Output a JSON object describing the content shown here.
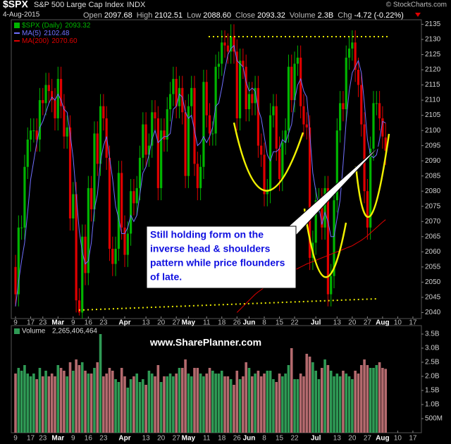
{
  "header": {
    "symbol": "$SPX",
    "name": "S&P 500 Large Cap Index",
    "exchange": "INDX",
    "copyright": "© StockCharts.com",
    "date": "4-Aug-2015",
    "quote": [
      {
        "label": "Open",
        "value": "2097.68"
      },
      {
        "label": "High",
        "value": "2102.51"
      },
      {
        "label": "Low",
        "value": "2088.60"
      },
      {
        "label": "Close",
        "value": "2093.32"
      },
      {
        "label": "Volume",
        "value": "2.3B"
      },
      {
        "label": "Chg",
        "value": "-4.72 (-0.22%)"
      }
    ]
  },
  "chart_data": [
    {
      "type": "candlestick",
      "xlim": [
        -1.4,
        133.8
      ],
      "xticks": [
        {
          "value": 0,
          "label": "9"
        },
        {
          "value": 5,
          "label": "17"
        },
        {
          "value": 9,
          "label": "23"
        },
        {
          "value": 14,
          "label": "Mar"
        },
        {
          "value": 19,
          "label": "9"
        },
        {
          "value": 24,
          "label": "16"
        },
        {
          "value": 29,
          "label": "23"
        },
        {
          "value": 36,
          "label": "Apr"
        },
        {
          "value": 43,
          "label": "13"
        },
        {
          "value": 48,
          "label": "20"
        },
        {
          "value": 53,
          "label": "27"
        },
        {
          "value": 57,
          "label": "May"
        },
        {
          "value": 63,
          "label": "11"
        },
        {
          "value": 68,
          "label": "18"
        },
        {
          "value": 73,
          "label": "26"
        },
        {
          "value": 77,
          "label": "Jun"
        },
        {
          "value": 82,
          "label": "8"
        },
        {
          "value": 87,
          "label": "15"
        },
        {
          "value": 92,
          "label": "22"
        },
        {
          "value": 99,
          "label": "Jul"
        },
        {
          "value": 106,
          "label": "13"
        },
        {
          "value": 111,
          "label": "20"
        },
        {
          "value": 116,
          "label": "27"
        },
        {
          "value": 121,
          "label": "Aug"
        },
        {
          "value": 126,
          "label": "10"
        },
        {
          "value": 131,
          "label": "17"
        }
      ],
      "ylim": [
        2038,
        2136.5
      ],
      "yticks": [
        2040,
        2045,
        2050,
        2055,
        2060,
        2065,
        2070,
        2075,
        2080,
        2085,
        2090,
        2095,
        2100,
        2105,
        2110,
        2115,
        2120,
        2125,
        2130,
        2135
      ],
      "up_color": "#00b400",
      "down_color": "#e00000",
      "open": [
        2055,
        2046,
        2068,
        2068,
        2088,
        2097,
        2100,
        2100,
        2097,
        2110,
        2109,
        2115,
        2113,
        2110,
        2104,
        2117,
        2108,
        2098,
        2101,
        2071,
        2079,
        2044,
        2040,
        2065,
        2053,
        2081,
        2074,
        2099,
        2089,
        2108,
        2104,
        2091,
        2061,
        2056,
        2061,
        2086,
        2068,
        2059,
        2066,
        2080,
        2076,
        2081,
        2091,
        2102,
        2092,
        2095,
        2106,
        2104,
        2081,
        2100,
        2097,
        2107,
        2112,
        2117,
        2108,
        2114,
        2106,
        2085,
        2108,
        2114,
        2089,
        2081,
        2088,
        2116,
        2105,
        2099,
        2099,
        2121,
        2122,
        2129,
        2128,
        2126,
        2131,
        2126,
        2104,
        2123,
        2121,
        2107,
        2112,
        2109,
        2114,
        2095,
        2092,
        2079,
        2080,
        2105,
        2108,
        2094,
        2084,
        2096,
        2100,
        2121,
        2110,
        2122,
        2124,
        2108,
        2102,
        2101,
        2058,
        2063,
        2077,
        2077,
        2068,
        2081,
        2046,
        2052,
        2077,
        2100,
        2109,
        2107,
        2124,
        2127,
        2129,
        2120,
        2115,
        2102,
        2080,
        2068,
        2094,
        2109,
        2109,
        2104,
        2097.68
      ],
      "high": [
        2059,
        2072,
        2072,
        2092,
        2101,
        2104,
        2104,
        2104,
        2114,
        2114,
        2119,
        2119,
        2117,
        2114,
        2121,
        2121,
        2112,
        2105,
        2105,
        2083,
        2083,
        2048,
        2069,
        2069,
        2085,
        2085,
        2103,
        2103,
        2112,
        2112,
        2108,
        2095,
        2065,
        2065,
        2090,
        2090,
        2072,
        2070,
        2084,
        2084,
        2085,
        2095,
        2106,
        2106,
        2099,
        2110,
        2110,
        2108,
        2104,
        2104,
        2111,
        2116,
        2121,
        2121,
        2118,
        2118,
        2110,
        2112,
        2118,
        2118,
        2093,
        2092,
        2120,
        2120,
        2109,
        2103,
        2125,
        2126,
        2133,
        2133,
        2132,
        2135,
        2135,
        2130,
        2127,
        2127,
        2125,
        2116,
        2116,
        2118,
        2118,
        2099,
        2096,
        2084,
        2109,
        2112,
        2112,
        2098,
        2100,
        2104,
        2125,
        2125,
        2126,
        2128,
        2128,
        2112,
        2106,
        2105,
        2067,
        2081,
        2081,
        2081,
        2085,
        2085,
        2056,
        2081,
        2104,
        2113,
        2113,
        2128,
        2131,
        2133,
        2133,
        2124,
        2119,
        2106,
        2084,
        2098,
        2113,
        2113,
        2113,
        2108,
        2102.51
      ],
      "low": [
        2042,
        2042,
        2064,
        2064,
        2084,
        2093,
        2096,
        2093,
        2093,
        2105,
        2105,
        2109,
        2106,
        2100,
        2100,
        2104,
        2094,
        2094,
        2067,
        2067,
        2040,
        2039,
        2038,
        2049,
        2049,
        2070,
        2070,
        2085,
        2085,
        2100,
        2087,
        2057,
        2052,
        2052,
        2057,
        2064,
        2055,
        2055,
        2062,
        2072,
        2072,
        2077,
        2087,
        2088,
        2088,
        2091,
        2100,
        2077,
        2077,
        2093,
        2093,
        2103,
        2108,
        2104,
        2104,
        2102,
        2081,
        2081,
        2104,
        2085,
        2077,
        2077,
        2084,
        2101,
        2095,
        2095,
        2095,
        2117,
        2118,
        2124,
        2122,
        2122,
        2122,
        2100,
        2100,
        2117,
        2103,
        2103,
        2105,
        2105,
        2091,
        2088,
        2075,
        2075,
        2076,
        2101,
        2090,
        2080,
        2080,
        2092,
        2096,
        2106,
        2106,
        2118,
        2104,
        2098,
        2097,
        2054,
        2054,
        2059,
        2073,
        2064,
        2064,
        2042,
        2042,
        2048,
        2073,
        2096,
        2103,
        2103,
        2120,
        2123,
        2116,
        2111,
        2098,
        2076,
        2064,
        2064,
        2090,
        2105,
        2100,
        2094,
        2088.6
      ],
      "close": [
        2046,
        2068,
        2068,
        2088,
        2097,
        2100,
        2100,
        2097,
        2110,
        2109,
        2115,
        2113,
        2110,
        2104,
        2117,
        2108,
        2098,
        2101,
        2071,
        2079,
        2044,
        2040,
        2065,
        2053,
        2081,
        2074,
        2099,
        2089,
        2108,
        2104,
        2091,
        2061,
        2056,
        2061,
        2086,
        2068,
        2059,
        2066,
        2080,
        2076,
        2081,
        2091,
        2102,
        2092,
        2095,
        2106,
        2104,
        2081,
        2100,
        2097,
        2107,
        2112,
        2117,
        2108,
        2114,
        2106,
        2085,
        2108,
        2114,
        2089,
        2081,
        2088,
        2116,
        2105,
        2099,
        2099,
        2121,
        2122,
        2129,
        2128,
        2126,
        2131,
        2126,
        2104,
        2123,
        2121,
        2107,
        2112,
        2109,
        2114,
        2095,
        2092,
        2079,
        2080,
        2105,
        2108,
        2094,
        2084,
        2096,
        2100,
        2121,
        2110,
        2122,
        2124,
        2108,
        2102,
        2101,
        2058,
        2063,
        2077,
        2077,
        2068,
        2081,
        2046,
        2052,
        2077,
        2100,
        2109,
        2107,
        2124,
        2127,
        2129,
        2120,
        2115,
        2102,
        2080,
        2068,
        2094,
        2109,
        2109,
        2104,
        2098,
        2093.32
      ],
      "series": [
        {
          "name": "$SPX (Daily)",
          "label": "2093.32",
          "color": "#00b400"
        },
        {
          "name": "MA(5)",
          "label": "2102.48",
          "color": "#7070ff",
          "values": [
            2042,
            2050,
            2057,
            2063,
            2073,
            2084,
            2090,
            2096,
            2101,
            2103,
            2106,
            2109,
            2111,
            2110,
            2112,
            2110,
            2107,
            2106,
            2099,
            2091,
            2079,
            2067,
            2060,
            2056,
            2057,
            2063,
            2074,
            2079,
            2090,
            2095,
            2098,
            2091,
            2084,
            2075,
            2071,
            2066,
            2066,
            2068,
            2072,
            2070,
            2072,
            2079,
            2086,
            2088,
            2092,
            2097,
            2100,
            2096,
            2097,
            2098,
            2098,
            2099,
            2107,
            2108,
            2112,
            2111,
            2106,
            2104,
            2105,
            2100,
            2095,
            2096,
            2098,
            2096,
            2098,
            2101,
            2108,
            2109,
            2114,
            2120,
            2125,
            2127,
            2128,
            2123,
            2122,
            2121,
            2116,
            2113,
            2114,
            2113,
            2107,
            2104,
            2098,
            2092,
            2090,
            2093,
            2093,
            2094,
            2097,
            2096,
            2099,
            2102,
            2110,
            2115,
            2117,
            2113,
            2111,
            2099,
            2086,
            2080,
            2075,
            2069,
            2073,
            2070,
            2065,
            2065,
            2071,
            2077,
            2089,
            2103,
            2113,
            2119,
            2121,
            2123,
            2119,
            2109,
            2097,
            2092,
            2091,
            2092,
            2097,
            2103,
            2102.48
          ]
        },
        {
          "name": "MA(200)",
          "label": "2070.60",
          "color": "#e00000",
          "values": [
            null,
            null,
            null,
            null,
            null,
            null,
            null,
            null,
            null,
            null,
            null,
            null,
            null,
            null,
            null,
            null,
            null,
            null,
            null,
            null,
            null,
            null,
            null,
            null,
            null,
            null,
            null,
            null,
            null,
            null,
            null,
            null,
            null,
            null,
            null,
            null,
            null,
            null,
            null,
            null,
            null,
            null,
            null,
            null,
            null,
            null,
            null,
            null,
            null,
            null,
            null,
            null,
            null,
            null,
            null,
            null,
            null,
            null,
            null,
            null,
            null,
            null,
            null,
            null,
            null,
            null,
            null,
            null,
            null,
            null,
            null,
            null,
            null,
            2040,
            2041,
            2042,
            2043,
            2044,
            2045,
            2046,
            2046.8,
            2047.5,
            2048.2,
            2049,
            2049.6,
            2050.2,
            2050.8,
            2051.4,
            2052,
            2052.5,
            2053,
            2053.5,
            2054,
            2054.5,
            2055,
            2055.5,
            2056,
            2056.4,
            2056.8,
            2057.2,
            2057.6,
            2058,
            2058.4,
            2058.8,
            2059.2,
            2059.6,
            2060,
            2060.4,
            2060.8,
            2061.2,
            2061.6,
            2062,
            2062.6,
            2063.2,
            2063.8,
            2064.5,
            2065.3,
            2066.2,
            2067.1,
            2068,
            2068.9,
            2069.8,
            2070.6
          ]
        }
      ],
      "annotation": [
        "Still holding form on the",
        "inverse head & shoulders",
        "pattern while price flounders",
        "of late."
      ]
    },
    {
      "type": "bar",
      "title": "Volume",
      "title_value": "2,265,406,464",
      "watermark": "www.SharePlanner.com",
      "xlim": [
        -1.4,
        133.8
      ],
      "xticks": [
        {
          "value": 0,
          "label": "9"
        },
        {
          "value": 5,
          "label": "17"
        },
        {
          "value": 9,
          "label": "23"
        },
        {
          "value": 14,
          "label": "Mar"
        },
        {
          "value": 19,
          "label": "9"
        },
        {
          "value": 24,
          "label": "16"
        },
        {
          "value": 29,
          "label": "23"
        },
        {
          "value": 36,
          "label": "Apr"
        },
        {
          "value": 43,
          "label": "13"
        },
        {
          "value": 48,
          "label": "20"
        },
        {
          "value": 53,
          "label": "27"
        },
        {
          "value": 57,
          "label": "May"
        },
        {
          "value": 63,
          "label": "11"
        },
        {
          "value": 68,
          "label": "18"
        },
        {
          "value": 73,
          "label": "26"
        },
        {
          "value": 77,
          "label": "Jun"
        },
        {
          "value": 82,
          "label": "8"
        },
        {
          "value": 87,
          "label": "15"
        },
        {
          "value": 92,
          "label": "22"
        },
        {
          "value": 99,
          "label": "Jul"
        },
        {
          "value": 106,
          "label": "13"
        },
        {
          "value": 111,
          "label": "20"
        },
        {
          "value": 116,
          "label": "27"
        },
        {
          "value": 121,
          "label": "Aug"
        },
        {
          "value": 126,
          "label": "10"
        },
        {
          "value": 131,
          "label": "17"
        }
      ],
      "ylim": [
        0,
        3.8
      ],
      "yticks": [
        {
          "value": 0.5,
          "label": "500M"
        },
        {
          "value": 1,
          "label": "1.0B"
        },
        {
          "value": 1.5,
          "label": "1.5B"
        },
        {
          "value": 2,
          "label": "2.0B"
        },
        {
          "value": 2.5,
          "label": "2.5B"
        },
        {
          "value": 3,
          "label": "3.0B"
        },
        {
          "value": 3.5,
          "label": "3.5B"
        }
      ],
      "up_color": "#2f9a55",
      "down_color": "#b46a6e",
      "values": [
        2.1,
        2.3,
        2.2,
        2.4,
        2.1,
        2.0,
        2.1,
        1.9,
        2.3,
        2.0,
        2.2,
        2.0,
        2.1,
        2.0,
        2.4,
        2.3,
        2.2,
        2.0,
        2.5,
        2.2,
        2.6,
        2.4,
        2.5,
        2.2,
        2.1,
        2.1,
        2.3,
        2.5,
        3.5,
        2.0,
        2.1,
        2.3,
        2.2,
        1.9,
        1.8,
        2.3,
        2.0,
        1.6,
        1.9,
        2.0,
        2.1,
        1.8,
        1.9,
        1.7,
        2.2,
        2.1,
        2.0,
        2.4,
        1.8,
        2.0,
        2.0,
        2.1,
        2.0,
        2.1,
        2.3,
        2.3,
        2.6,
        2.1,
        2.0,
        2.3,
        2.3,
        2.1,
        2.0,
        2.1,
        2.3,
        2.2,
        2.1,
        2.1,
        2.2,
        2.0,
        2.0,
        1.9,
        1.7,
        2.2,
        1.9,
        2.0,
        2.5,
        2.3,
        2.0,
        2.1,
        2.2,
        2.0,
        2.1,
        2.2,
        2.2,
        1.9,
        1.8,
        2.1,
        2.0,
        2.1,
        2.4,
        3.0,
        1.9,
        1.9,
        2.1,
        2.0,
        2.8,
        2.7,
        2.5,
        2.2,
        1.9,
        2.3,
        2.6,
        2.4,
        2.2,
        2.0,
        2.1,
        2.0,
        2.2,
        2.1,
        2.0,
        1.9,
        2.2,
        2.1,
        2.4,
        2.6,
        2.4,
        2.3,
        2.3,
        2.4,
        2.5,
        2.3,
        2.265406464
      ]
    }
  ]
}
